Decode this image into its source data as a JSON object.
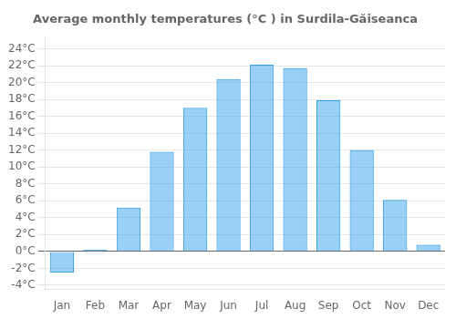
{
  "chart_data": {
    "type": "bar",
    "title": "Average monthly temperatures (°C ) in Surdila-Găiseanca",
    "categories": [
      "Jan",
      "Feb",
      "Mar",
      "Apr",
      "May",
      "Jun",
      "Jul",
      "Aug",
      "Sep",
      "Oct",
      "Nov",
      "Dec"
    ],
    "values": [
      -2.5,
      0.2,
      5.2,
      11.8,
      17.0,
      20.4,
      22.1,
      21.7,
      17.9,
      12.0,
      6.1,
      0.8
    ],
    "ylim": [
      -4.5,
      25.5
    ],
    "yticks": [
      {
        "value": -4,
        "label": "-4°C"
      },
      {
        "value": -2,
        "label": "-2°C"
      },
      {
        "value": 0,
        "label": "0°C"
      },
      {
        "value": 2,
        "label": "2°C"
      },
      {
        "value": 4,
        "label": "4°C"
      },
      {
        "value": 6,
        "label": "6°C"
      },
      {
        "value": 8,
        "label": "8°C"
      },
      {
        "value": 10,
        "label": "10°C"
      },
      {
        "value": 12,
        "label": "12°C"
      },
      {
        "value": 14,
        "label": "14°C"
      },
      {
        "value": 16,
        "label": "16°C"
      },
      {
        "value": 18,
        "label": "18°C"
      },
      {
        "value": 20,
        "label": "20°C"
      },
      {
        "value": 22,
        "label": "22°C"
      },
      {
        "value": 24,
        "label": "24°C"
      }
    ],
    "grid": true
  }
}
